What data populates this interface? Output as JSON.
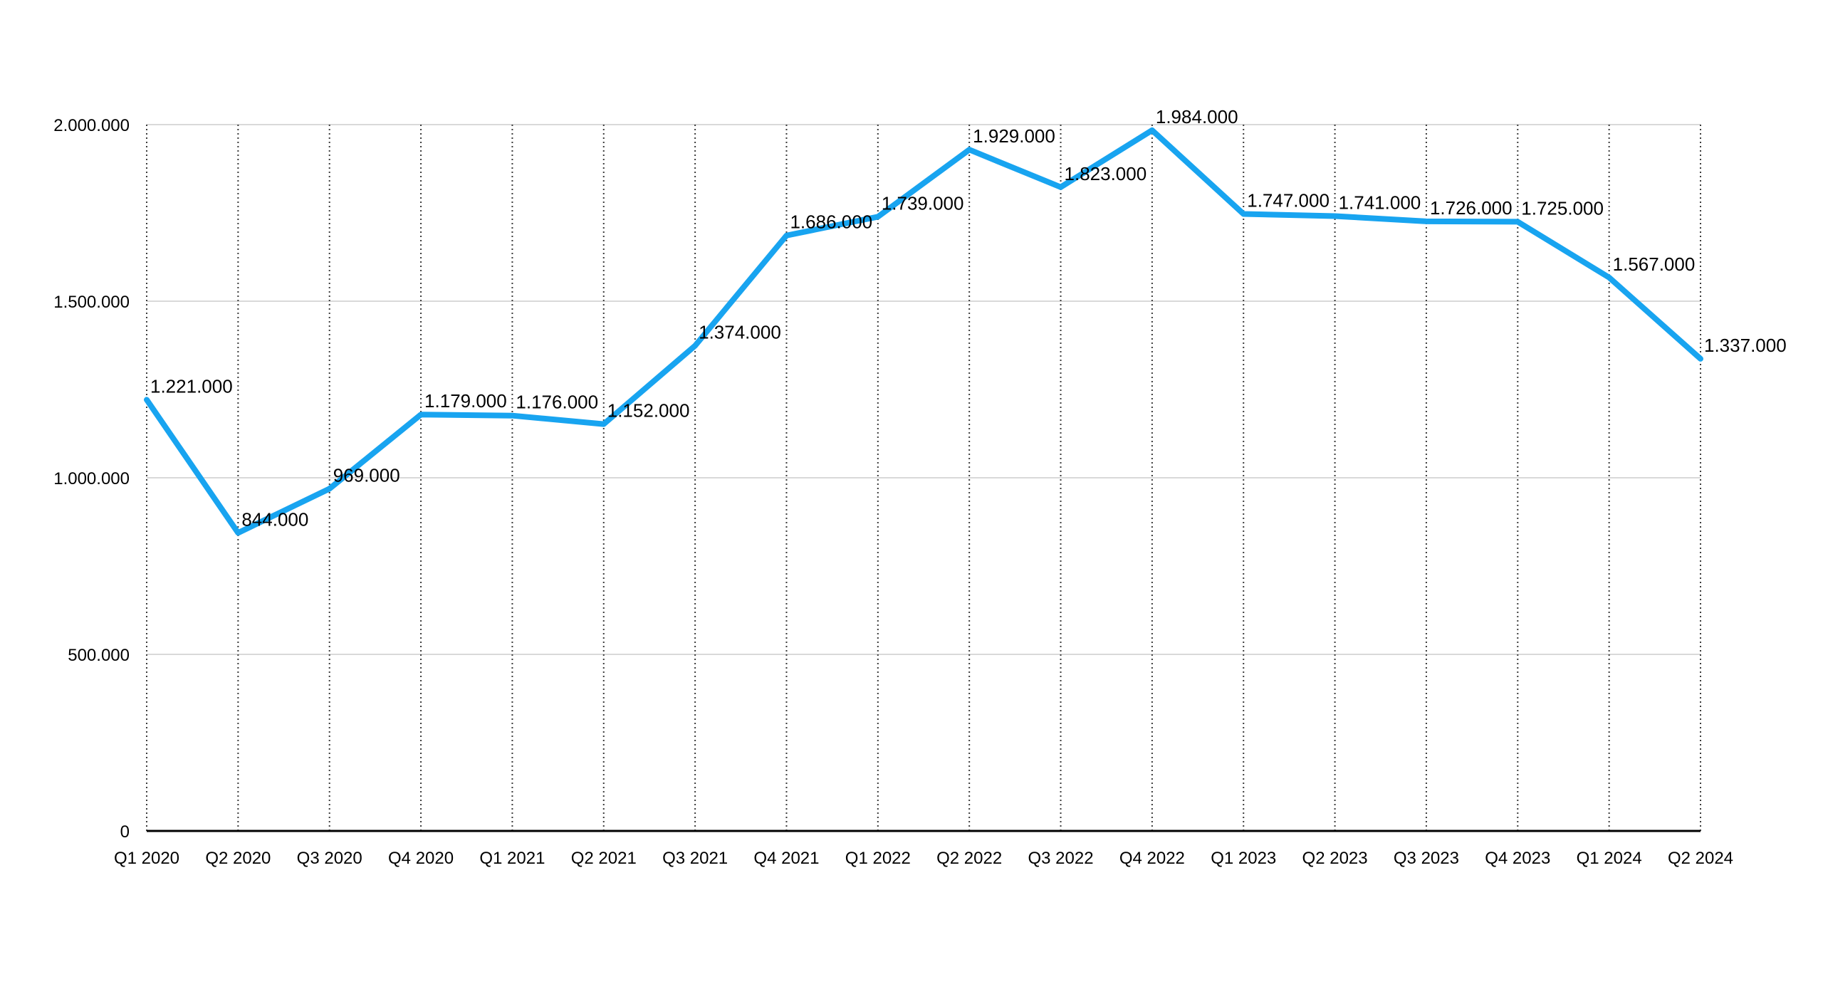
{
  "chart_data": {
    "type": "line",
    "title": "",
    "xlabel": "",
    "ylabel": "",
    "legend": null,
    "categories": [
      "Q1 2020",
      "Q2 2020",
      "Q3 2020",
      "Q4 2020",
      "Q1 2021",
      "Q2 2021",
      "Q3 2021",
      "Q4 2021",
      "Q1 2022",
      "Q2 2022",
      "Q3 2022",
      "Q4 2022",
      "Q1 2023",
      "Q2 2023",
      "Q3 2023",
      "Q4 2023",
      "Q1 2024",
      "Q2 2024"
    ],
    "values": [
      1221000,
      844000,
      969000,
      1179000,
      1176000,
      1152000,
      1374000,
      1686000,
      1739000,
      1929000,
      1823000,
      1984000,
      1747000,
      1741000,
      1726000,
      1725000,
      1567000,
      1337000
    ],
    "point_labels": [
      "1.221.000",
      "844.000",
      "969.000",
      "1.179.000",
      "1.176.000",
      "1.152.000",
      "1.374.000",
      "1.686.000",
      "1.739.000",
      "1.929.000",
      "1.823.000",
      "1.984.000",
      "1.747.000",
      "1.741.000",
      "1.726.000",
      "1.725.000",
      "1.567.000",
      "1.337.000"
    ],
    "y_ticks": [
      {
        "value": 0,
        "label": "0"
      },
      {
        "value": 500000,
        "label": "500.000"
      },
      {
        "value": 1000000,
        "label": "1.000.000"
      },
      {
        "value": 1500000,
        "label": "1.500.000"
      },
      {
        "value": 2000000,
        "label": "2.000.000"
      }
    ],
    "ylim": [
      0,
      2000000
    ],
    "grid_horizontal": true,
    "grid_vertical_dotted": true,
    "colors": {
      "line": "#18A4F0",
      "h_gridline": "#D9D9D9",
      "v_gridline_dotted": "#3C3C3C",
      "axis_baseline": "#000000",
      "label_text": "#000000",
      "background": "#FFFFFF"
    }
  }
}
